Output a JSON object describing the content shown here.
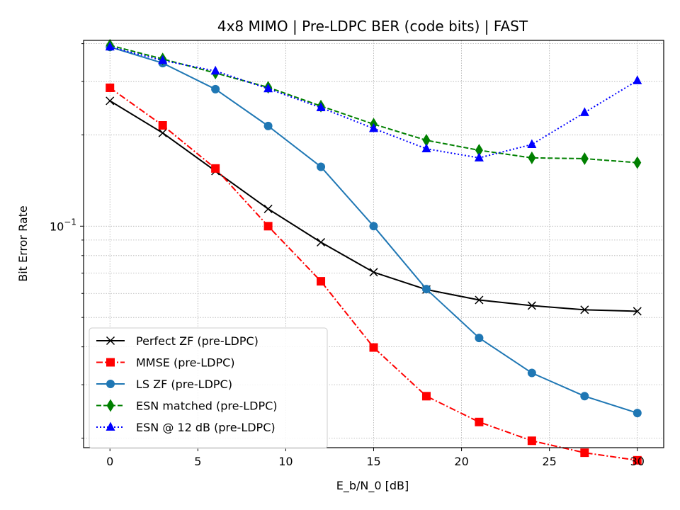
{
  "chart_data": {
    "type": "line",
    "title": "4x8 MIMO | Pre-LDPC BER (code bits) | FAST",
    "xlabel": "E_b/N_0 [dB]",
    "ylabel": "Bit Error Rate",
    "yscale": "log",
    "xlim": [
      -1.5,
      31.5
    ],
    "ylim": [
      0.0186,
      0.41
    ],
    "xticks": [
      0,
      5,
      10,
      15,
      20,
      25,
      30
    ],
    "xtick_labels": [
      "0",
      "5",
      "10",
      "15",
      "20",
      "25",
      "30"
    ],
    "ytick_major_label": "10^{-1}",
    "grid": true,
    "legend_position": "lower-left",
    "x": [
      0,
      3,
      6,
      9,
      12,
      15,
      18,
      21,
      24,
      27,
      30
    ],
    "series": [
      {
        "name": "Perfect ZF (pre-LDPC)",
        "color": "#000000",
        "linestyle": "solid",
        "marker": "x",
        "values": [
          0.259,
          0.203,
          0.152,
          0.114,
          0.0885,
          0.0705,
          0.0618,
          0.0571,
          0.0547,
          0.053,
          0.0524
        ]
      },
      {
        "name": "MMSE (pre-LDPC)",
        "color": "#ff0000",
        "linestyle": "dashdot",
        "marker": "square",
        "values": [
          0.286,
          0.215,
          0.155,
          0.1,
          0.0658,
          0.0398,
          0.0275,
          0.0226,
          0.0196,
          0.0179,
          0.0169
        ]
      },
      {
        "name": "LS ZF (pre-LDPC)",
        "color": "#1f77b4",
        "linestyle": "solid",
        "marker": "circle",
        "values": [
          0.39,
          0.345,
          0.283,
          0.214,
          0.157,
          0.1,
          0.062,
          0.0428,
          0.0328,
          0.0275,
          0.0242
        ]
      },
      {
        "name": "ESN matched (pre-LDPC)",
        "color": "#008000",
        "linestyle": "dashed",
        "marker": "diamond",
        "values": [
          0.395,
          0.356,
          0.32,
          0.287,
          0.249,
          0.217,
          0.192,
          0.178,
          0.168,
          0.167,
          0.162
        ]
      },
      {
        "name": "ESN @ 12 dB (pre-LDPC)",
        "color": "#0000ff",
        "linestyle": "dotted",
        "marker": "triangle-up",
        "values": [
          0.39,
          0.352,
          0.325,
          0.284,
          0.246,
          0.21,
          0.18,
          0.168,
          0.186,
          0.237,
          0.302
        ]
      }
    ]
  }
}
